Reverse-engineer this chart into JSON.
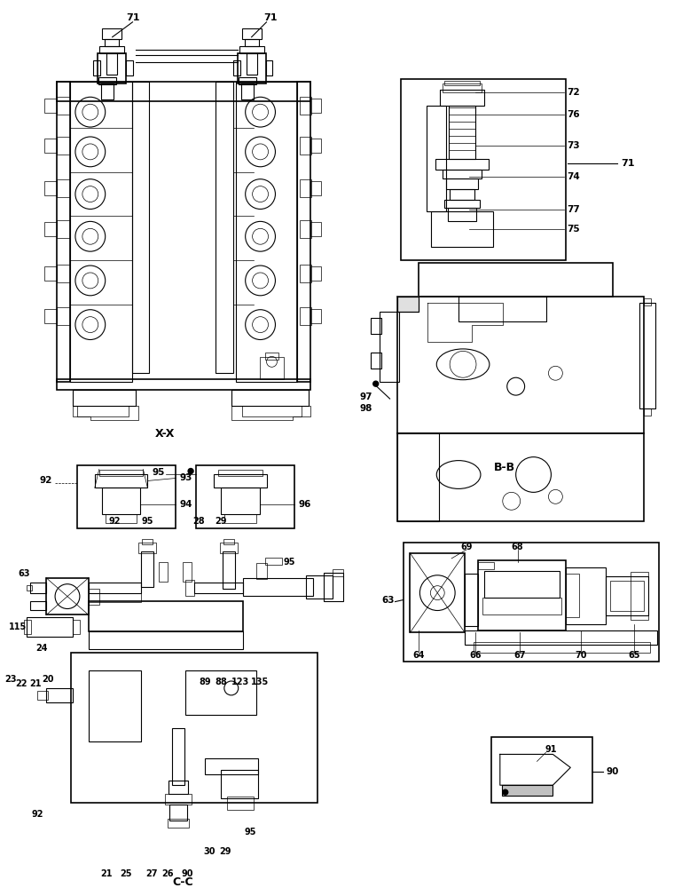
{
  "bg_color": "#ffffff",
  "line_color": "#000000",
  "fig_width": 7.6,
  "fig_height": 10.0,
  "labels": {
    "xx": "X-X",
    "bb": "B-B",
    "cc": "C-C",
    "71a": "71",
    "71b": "71",
    "71c": "71",
    "72": "72",
    "73": "73",
    "74": "74",
    "75": "75",
    "76": "76",
    "77": "77",
    "92a": "92",
    "92b": "92",
    "92c": "92",
    "93": "93",
    "94": "94",
    "95a": "95",
    "95b": "95",
    "95c": "95",
    "95d": "95",
    "96": "96",
    "97": "97",
    "98": "98",
    "63a": "63",
    "63b": "63",
    "64": "64",
    "65": "65",
    "66": "66",
    "67": "67",
    "68": "68",
    "69": "69",
    "70": "70",
    "20": "20",
    "21a": "21",
    "21b": "21",
    "22": "22",
    "23": "23",
    "24": "24",
    "25": "25",
    "26": "26",
    "27": "27",
    "28": "28",
    "29a": "29",
    "29b": "29",
    "30": "30",
    "88": "88",
    "89": "89",
    "90a": "90",
    "90b": "90",
    "91": "91",
    "115": "115",
    "123": "123",
    "135": "135"
  }
}
